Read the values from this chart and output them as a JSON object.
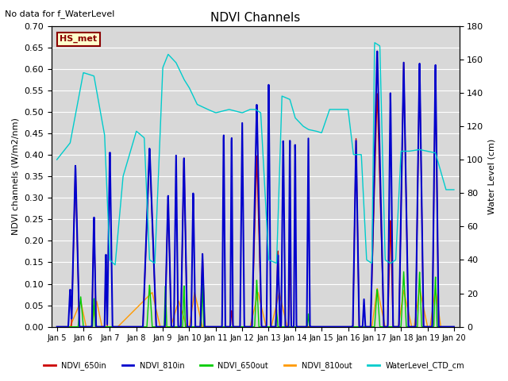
{
  "title": "NDVI Channels",
  "ylabel_left": "NDVI channels (W/m2/nm)",
  "ylabel_right": "Water Level (cm)",
  "annotation": "No data for f_WaterLevel",
  "station_label": "HS_met",
  "ylim_left": [
    0.0,
    0.7
  ],
  "ylim_right": [
    0,
    180
  ],
  "yticks_left": [
    0.0,
    0.05,
    0.1,
    0.15,
    0.2,
    0.25,
    0.3,
    0.35,
    0.4,
    0.45,
    0.5,
    0.55,
    0.6,
    0.65,
    0.7
  ],
  "yticks_right": [
    0,
    20,
    40,
    60,
    80,
    100,
    120,
    140,
    160,
    180
  ],
  "background_color": "#e8e8e8",
  "plot_bg_color": "#d8d8d8",
  "legend_entries": [
    "NDVI_650in",
    "NDVI_810in",
    "NDVI_650out",
    "NDVI_810out",
    "WaterLevel_CTD_cm"
  ],
  "line_colors": [
    "#cc0000",
    "#0000cc",
    "#00cc00",
    "#ff9900",
    "#00cccc"
  ],
  "line_widths": [
    1.0,
    1.5,
    1.0,
    1.0,
    1.0
  ],
  "figsize": [
    6.4,
    4.8
  ],
  "dpi": 100
}
